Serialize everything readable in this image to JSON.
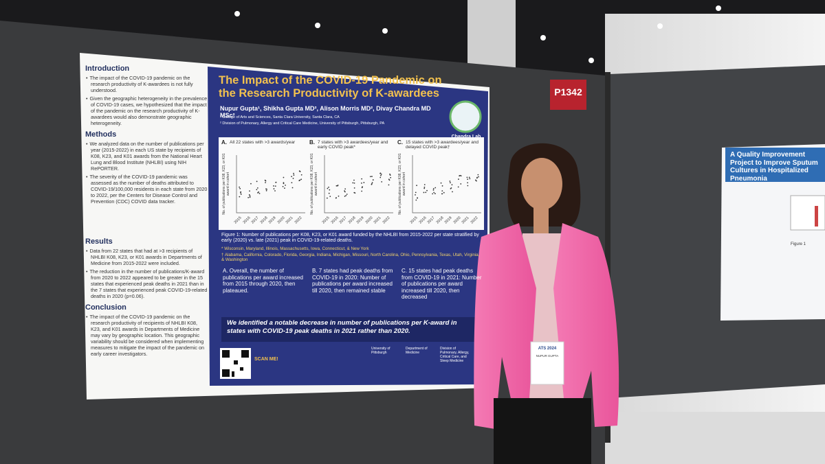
{
  "sign": "P1342",
  "poster": {
    "title": "The Impact of the COVID-19 Pandemic on the Research Productivity of K-awardees",
    "authors": "Nupur Gupta¹, Shikha Gupta MD², Alison Morris MD², Divay Chandra MD MSc²",
    "affiliations": [
      "¹ College of Arts and Sciences, Santa Clara University, Santa Clara, CA",
      "² Division of Pulmonary, Allergy and Critical Care Medicine, University of Pittsburgh, Pittsburgh, PA"
    ],
    "logo": "Chandra Lab",
    "sections": [
      {
        "heading": "Introduction",
        "items": [
          "The impact of the COVID-19 pandemic on the research productivity of K-awardees is not fully understood.",
          "Given the geographic heterogeneity in the prevalence of COVID-19 cases, we hypothesized that the impact of the pandemic on the research productivity of K-awardees would also demonstrate geographic heterogeneity."
        ]
      },
      {
        "heading": "Methods",
        "items": [
          "We analyzed data on the number of publications per year (2015-2022) in each US state by recipients of K08, K23, and K01 awards from the National Heart Lung and Blood Institute (NHLBI) using NIH RePORTER.",
          "The severity of the COVID-19 pandemic was assessed as the number of deaths attributed to COVID-19/100,000 residents in each state from 2020 to 2022, per the Centers for Disease Control and Prevention (CDC) COVID data tracker."
        ]
      },
      {
        "heading": "Results",
        "items": [
          "Data from 22 states that had at >3 recipients of NHLBI K08, K23, or K01 awards in Departments of Medicine from 2015-2022 were included.",
          "The reduction in the number of publications/K-award from 2020 to 2022 appeared to be greater in the 15 states that experienced peak deaths in 2021 than in the 7 states that experienced peak COVID-19-related deaths in 2020 (p=0.06)."
        ]
      },
      {
        "heading": "Conclusion",
        "items": [
          "The impact of the COVID-19 pandemic on the research productivity of recipients of NHLBI K08, K23, and K01 awards in Departments of Medicine may vary by geographic location. This geographic variability should be considered when implementing measures to mitigate the impact of the pandemic on early career investigators."
        ]
      }
    ],
    "figure": {
      "y_axis": "No. of publications per K08, K23, or K01 award in cohort",
      "x_ticks": [
        "2015",
        "2016",
        "2017",
        "2018",
        "2019",
        "2020",
        "2021",
        "2022"
      ],
      "panels": [
        {
          "label": "A.",
          "title": "All 22 states with >3 awards/year"
        },
        {
          "label": "B.",
          "title": "7 states with >3 awardees/year and early COVID peak*"
        },
        {
          "label": "C.",
          "title": "15 states with >3 awardees/year and delayed COVID peak†"
        }
      ],
      "caption": "Figure 1: Number of publications per K08, K23, or K01 award funded by the NHLBI from 2015-2022 per state stratified by early (2020) vs. late (2021) peak in COVID-19-related deaths.",
      "notes": [
        "* Wisconsin, Maryland, Illinois, Massachusetts, Iowa, Connecticut, & New York",
        "† Alabama, California, Colorado, Florida, Georgia, Indiana, Michigan, Missouri, North Carolina, Ohio, Pennsylvania, Texas, Utah, Virginia, & Washington"
      ]
    },
    "results": [
      "A. Overall, the number of publications per award increased from 2015 through 2020, then plateaued.",
      "B. 7 states had peak deaths from COVID-19 in 2020: Number of publications per award increased till 2020, then remained stable",
      "C. 15 states had peak deaths from COVID-19 in 2021: Number of publications per award increased till 2020, then decreased"
    ],
    "conclusion": "We identified a notable decrease in number of publications per K-award in states with COVID-19 peak deaths in 2021 rather than 2020.",
    "scan": "SCAN ME!",
    "logos": [
      "University of Pittsburgh",
      "Department of Medicine",
      "Division of Pulmonary, Allergy, Critical Care, and Sleep Medicine"
    ]
  },
  "badge": {
    "event": "ATS 2024",
    "name": "NUPUR GUPTA"
  },
  "right_poster": {
    "title": "A Quality Improvement Project to Improve Sputum Cultures in Hospitalized Pneumonia",
    "figure": "Figure 1"
  }
}
